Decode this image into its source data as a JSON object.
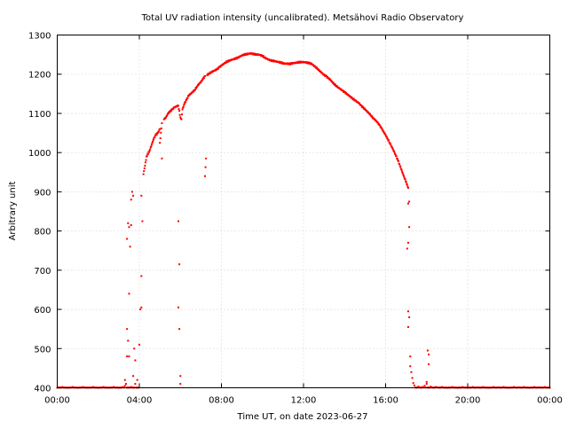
{
  "chart_data": {
    "type": "scatter",
    "title": "Total UV radiation intensity (uncalibrated). Metsähovi Radio Observatory",
    "xlabel": "Time UT, on date 2023-06-27",
    "ylabel": "Arbitrary unit",
    "xlim": [
      0,
      24
    ],
    "ylim": [
      400,
      1300
    ],
    "x_ticks": [
      {
        "value": 0,
        "label": "00:00"
      },
      {
        "value": 4,
        "label": "04:00"
      },
      {
        "value": 8,
        "label": "08:00"
      },
      {
        "value": 12,
        "label": "12:00"
      },
      {
        "value": 16,
        "label": "16:00"
      },
      {
        "value": 20,
        "label": "20:00"
      },
      {
        "value": 24,
        "label": "00:00"
      }
    ],
    "y_ticks": [
      400,
      500,
      600,
      700,
      800,
      900,
      1000,
      1100,
      1200,
      1300
    ],
    "grid": true,
    "marker_color": "#ff0000",
    "x_unit": "hours UT",
    "series": [
      {
        "points": [
          [
            0.0,
            400
          ],
          [
            0.5,
            400
          ],
          [
            1.0,
            400
          ],
          [
            1.5,
            400
          ],
          [
            2.0,
            400
          ],
          [
            2.5,
            400
          ],
          [
            3.0,
            400
          ],
          [
            3.2,
            402
          ],
          [
            3.3,
            405
          ],
          [
            3.3,
            420
          ],
          [
            3.35,
            410
          ],
          [
            3.4,
            480
          ],
          [
            3.4,
            550
          ],
          [
            3.45,
            520
          ],
          [
            3.5,
            640
          ],
          [
            3.5,
            480
          ],
          [
            3.4,
            780
          ],
          [
            3.45,
            820
          ],
          [
            3.5,
            810
          ],
          [
            3.55,
            760
          ],
          [
            3.6,
            815
          ],
          [
            3.6,
            880
          ],
          [
            3.65,
            900
          ],
          [
            3.7,
            890
          ],
          [
            3.7,
            430
          ],
          [
            3.75,
            500
          ],
          [
            3.8,
            470
          ],
          [
            3.8,
            410
          ],
          [
            3.9,
            420
          ],
          [
            3.95,
            400
          ],
          [
            4.0,
            510
          ],
          [
            4.05,
            600
          ],
          [
            4.1,
            605
          ],
          [
            4.1,
            685
          ],
          [
            4.15,
            825
          ],
          [
            4.1,
            890
          ],
          [
            4.2,
            945
          ],
          [
            4.25,
            960
          ],
          [
            4.3,
            975
          ],
          [
            4.35,
            990
          ],
          [
            4.5,
            1005
          ],
          [
            4.6,
            1020
          ],
          [
            4.7,
            1035
          ],
          [
            4.8,
            1045
          ],
          [
            4.9,
            1050
          ],
          [
            5.0,
            1060
          ],
          [
            5.1,
            1075
          ],
          [
            5.2,
            1085
          ],
          [
            5.3,
            1090
          ],
          [
            5.4,
            1100
          ],
          [
            5.5,
            1105
          ],
          [
            5.6,
            1110
          ],
          [
            5.7,
            1115
          ],
          [
            5.8,
            1118
          ],
          [
            5.9,
            1120
          ],
          [
            5.0,
            1025
          ],
          [
            5.1,
            985
          ],
          [
            5.9,
            825
          ],
          [
            5.95,
            715
          ],
          [
            5.9,
            605
          ],
          [
            5.95,
            550
          ],
          [
            6.0,
            430
          ],
          [
            6.0,
            410
          ],
          [
            6.0,
            1090
          ],
          [
            6.05,
            1085
          ],
          [
            6.1,
            1110
          ],
          [
            6.2,
            1125
          ],
          [
            6.3,
            1135
          ],
          [
            6.4,
            1145
          ],
          [
            6.5,
            1150
          ],
          [
            6.6,
            1155
          ],
          [
            6.7,
            1160
          ],
          [
            6.8,
            1168
          ],
          [
            6.9,
            1175
          ],
          [
            7.0,
            1180
          ],
          [
            7.1,
            1188
          ],
          [
            7.2,
            1195
          ],
          [
            7.3,
            1198
          ],
          [
            7.4,
            1202
          ],
          [
            7.5,
            1205
          ],
          [
            7.6,
            1208
          ],
          [
            7.7,
            1210
          ],
          [
            7.8,
            1213
          ],
          [
            7.9,
            1218
          ],
          [
            8.0,
            1222
          ],
          [
            8.1,
            1226
          ],
          [
            8.2,
            1230
          ],
          [
            8.3,
            1233
          ],
          [
            8.4,
            1235
          ],
          [
            8.5,
            1237
          ],
          [
            8.6,
            1238
          ],
          [
            8.7,
            1240
          ],
          [
            8.8,
            1242
          ],
          [
            8.9,
            1245
          ],
          [
            9.0,
            1248
          ],
          [
            9.1,
            1250
          ],
          [
            9.2,
            1251
          ],
          [
            9.3,
            1252
          ],
          [
            9.4,
            1253
          ],
          [
            9.5,
            1252
          ],
          [
            9.6,
            1251
          ],
          [
            9.7,
            1250
          ],
          [
            9.8,
            1250
          ],
          [
            9.9,
            1249
          ],
          [
            10.0,
            1247
          ],
          [
            10.1,
            1243
          ],
          [
            10.2,
            1240
          ],
          [
            10.3,
            1237
          ],
          [
            10.4,
            1235
          ],
          [
            10.5,
            1234
          ],
          [
            10.6,
            1233
          ],
          [
            10.7,
            1232
          ],
          [
            10.8,
            1231
          ],
          [
            10.9,
            1230
          ],
          [
            11.0,
            1228
          ],
          [
            11.1,
            1227
          ],
          [
            11.2,
            1227
          ],
          [
            11.3,
            1226
          ],
          [
            11.4,
            1227
          ],
          [
            11.5,
            1228
          ],
          [
            11.6,
            1229
          ],
          [
            11.7,
            1230
          ],
          [
            11.8,
            1231
          ],
          [
            11.9,
            1231
          ],
          [
            12.0,
            1231
          ],
          [
            12.1,
            1230
          ],
          [
            12.2,
            1229
          ],
          [
            12.3,
            1228
          ],
          [
            12.4,
            1226
          ],
          [
            12.5,
            1222
          ],
          [
            12.6,
            1218
          ],
          [
            12.7,
            1213
          ],
          [
            12.8,
            1208
          ],
          [
            12.9,
            1203
          ],
          [
            13.0,
            1198
          ],
          [
            13.1,
            1195
          ],
          [
            13.2,
            1190
          ],
          [
            13.3,
            1186
          ],
          [
            13.4,
            1180
          ],
          [
            13.5,
            1175
          ],
          [
            13.6,
            1170
          ],
          [
            13.7,
            1166
          ],
          [
            13.8,
            1162
          ],
          [
            13.9,
            1158
          ],
          [
            14.0,
            1154
          ],
          [
            14.1,
            1150
          ],
          [
            14.2,
            1146
          ],
          [
            14.3,
            1142
          ],
          [
            14.4,
            1138
          ],
          [
            14.5,
            1134
          ],
          [
            14.6,
            1130
          ],
          [
            14.7,
            1126
          ],
          [
            14.8,
            1120
          ],
          [
            14.9,
            1115
          ],
          [
            15.0,
            1110
          ],
          [
            15.1,
            1105
          ],
          [
            15.2,
            1100
          ],
          [
            15.3,
            1094
          ],
          [
            15.4,
            1088
          ],
          [
            15.5,
            1083
          ],
          [
            15.6,
            1077
          ],
          [
            15.7,
            1070
          ],
          [
            15.8,
            1062
          ],
          [
            15.9,
            1053
          ],
          [
            16.0,
            1045
          ],
          [
            16.1,
            1035
          ],
          [
            16.2,
            1025
          ],
          [
            16.3,
            1015
          ],
          [
            16.4,
            1004
          ],
          [
            16.5,
            992
          ],
          [
            16.6,
            980
          ],
          [
            16.7,
            966
          ],
          [
            16.8,
            952
          ],
          [
            16.9,
            938
          ],
          [
            17.0,
            925
          ],
          [
            17.05,
            918
          ],
          [
            17.1,
            910
          ],
          [
            7.2,
            940
          ],
          [
            7.25,
            985
          ],
          [
            17.1,
            870
          ],
          [
            17.15,
            875
          ],
          [
            17.15,
            810
          ],
          [
            17.1,
            770
          ],
          [
            17.05,
            755
          ],
          [
            17.1,
            595
          ],
          [
            17.15,
            580
          ],
          [
            17.1,
            555
          ],
          [
            17.2,
            480
          ],
          [
            17.2,
            455
          ],
          [
            17.25,
            440
          ],
          [
            17.3,
            425
          ],
          [
            17.35,
            412
          ],
          [
            17.4,
            406
          ],
          [
            17.6,
            403
          ],
          [
            17.8,
            402
          ],
          [
            17.9,
            405
          ],
          [
            18.0,
            410
          ],
          [
            18.0,
            415
          ],
          [
            18.05,
            495
          ],
          [
            18.1,
            485
          ],
          [
            18.1,
            460
          ],
          [
            18.2,
            403
          ],
          [
            18.5,
            401
          ],
          [
            19.0,
            400
          ],
          [
            19.5,
            400
          ],
          [
            20.0,
            400
          ],
          [
            20.5,
            401
          ],
          [
            21.0,
            400
          ],
          [
            21.5,
            401
          ],
          [
            22.0,
            400
          ],
          [
            22.5,
            401
          ],
          [
            23.0,
            400
          ],
          [
            23.5,
            401
          ],
          [
            24.0,
            400
          ]
        ]
      }
    ]
  }
}
